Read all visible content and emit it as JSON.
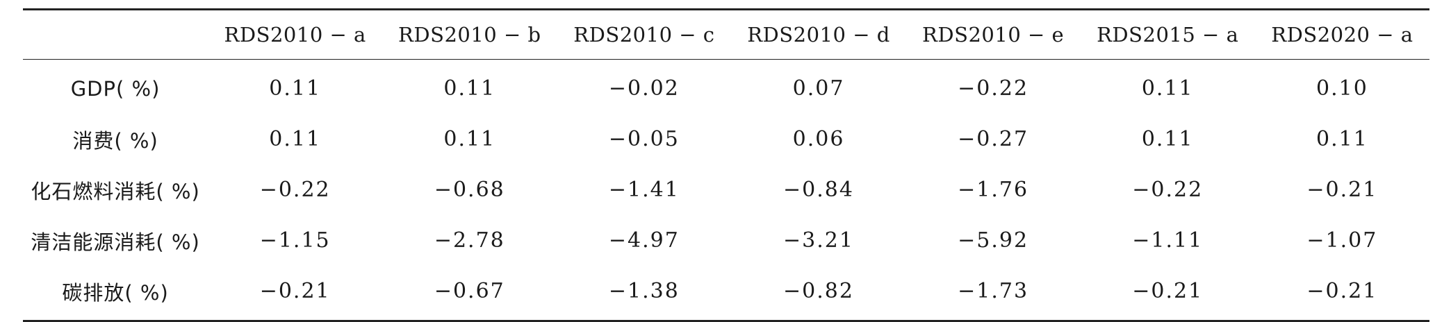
{
  "table": {
    "columns": [
      "",
      "RDS2010 − a",
      "RDS2010 − b",
      "RDS2010 − c",
      "RDS2010 − d",
      "RDS2010 − e",
      "RDS2015 − a",
      "RDS2020 − a"
    ],
    "rows": [
      {
        "label": "GDP( %)",
        "values": [
          "0.11",
          "0.11",
          "−0.02",
          "0.07",
          "−0.22",
          "0.11",
          "0.10"
        ]
      },
      {
        "label": "消费( %)",
        "values": [
          "0.11",
          "0.11",
          "−0.05",
          "0.06",
          "−0.27",
          "0.11",
          "0.11"
        ]
      },
      {
        "label": "化石燃料消耗( %)",
        "values": [
          "−0.22",
          "−0.68",
          "−1.41",
          "−0.84",
          "−1.76",
          "−0.22",
          "−0.21"
        ]
      },
      {
        "label": "清洁能源消耗( %)",
        "values": [
          "−1.15",
          "−2.78",
          "−4.97",
          "−3.21",
          "−5.92",
          "−1.11",
          "−1.07"
        ]
      },
      {
        "label": "碳排放( %)",
        "values": [
          "−0.21",
          "−0.67",
          "−1.38",
          "−0.82",
          "−1.73",
          "−0.21",
          "−0.21"
        ]
      }
    ]
  }
}
